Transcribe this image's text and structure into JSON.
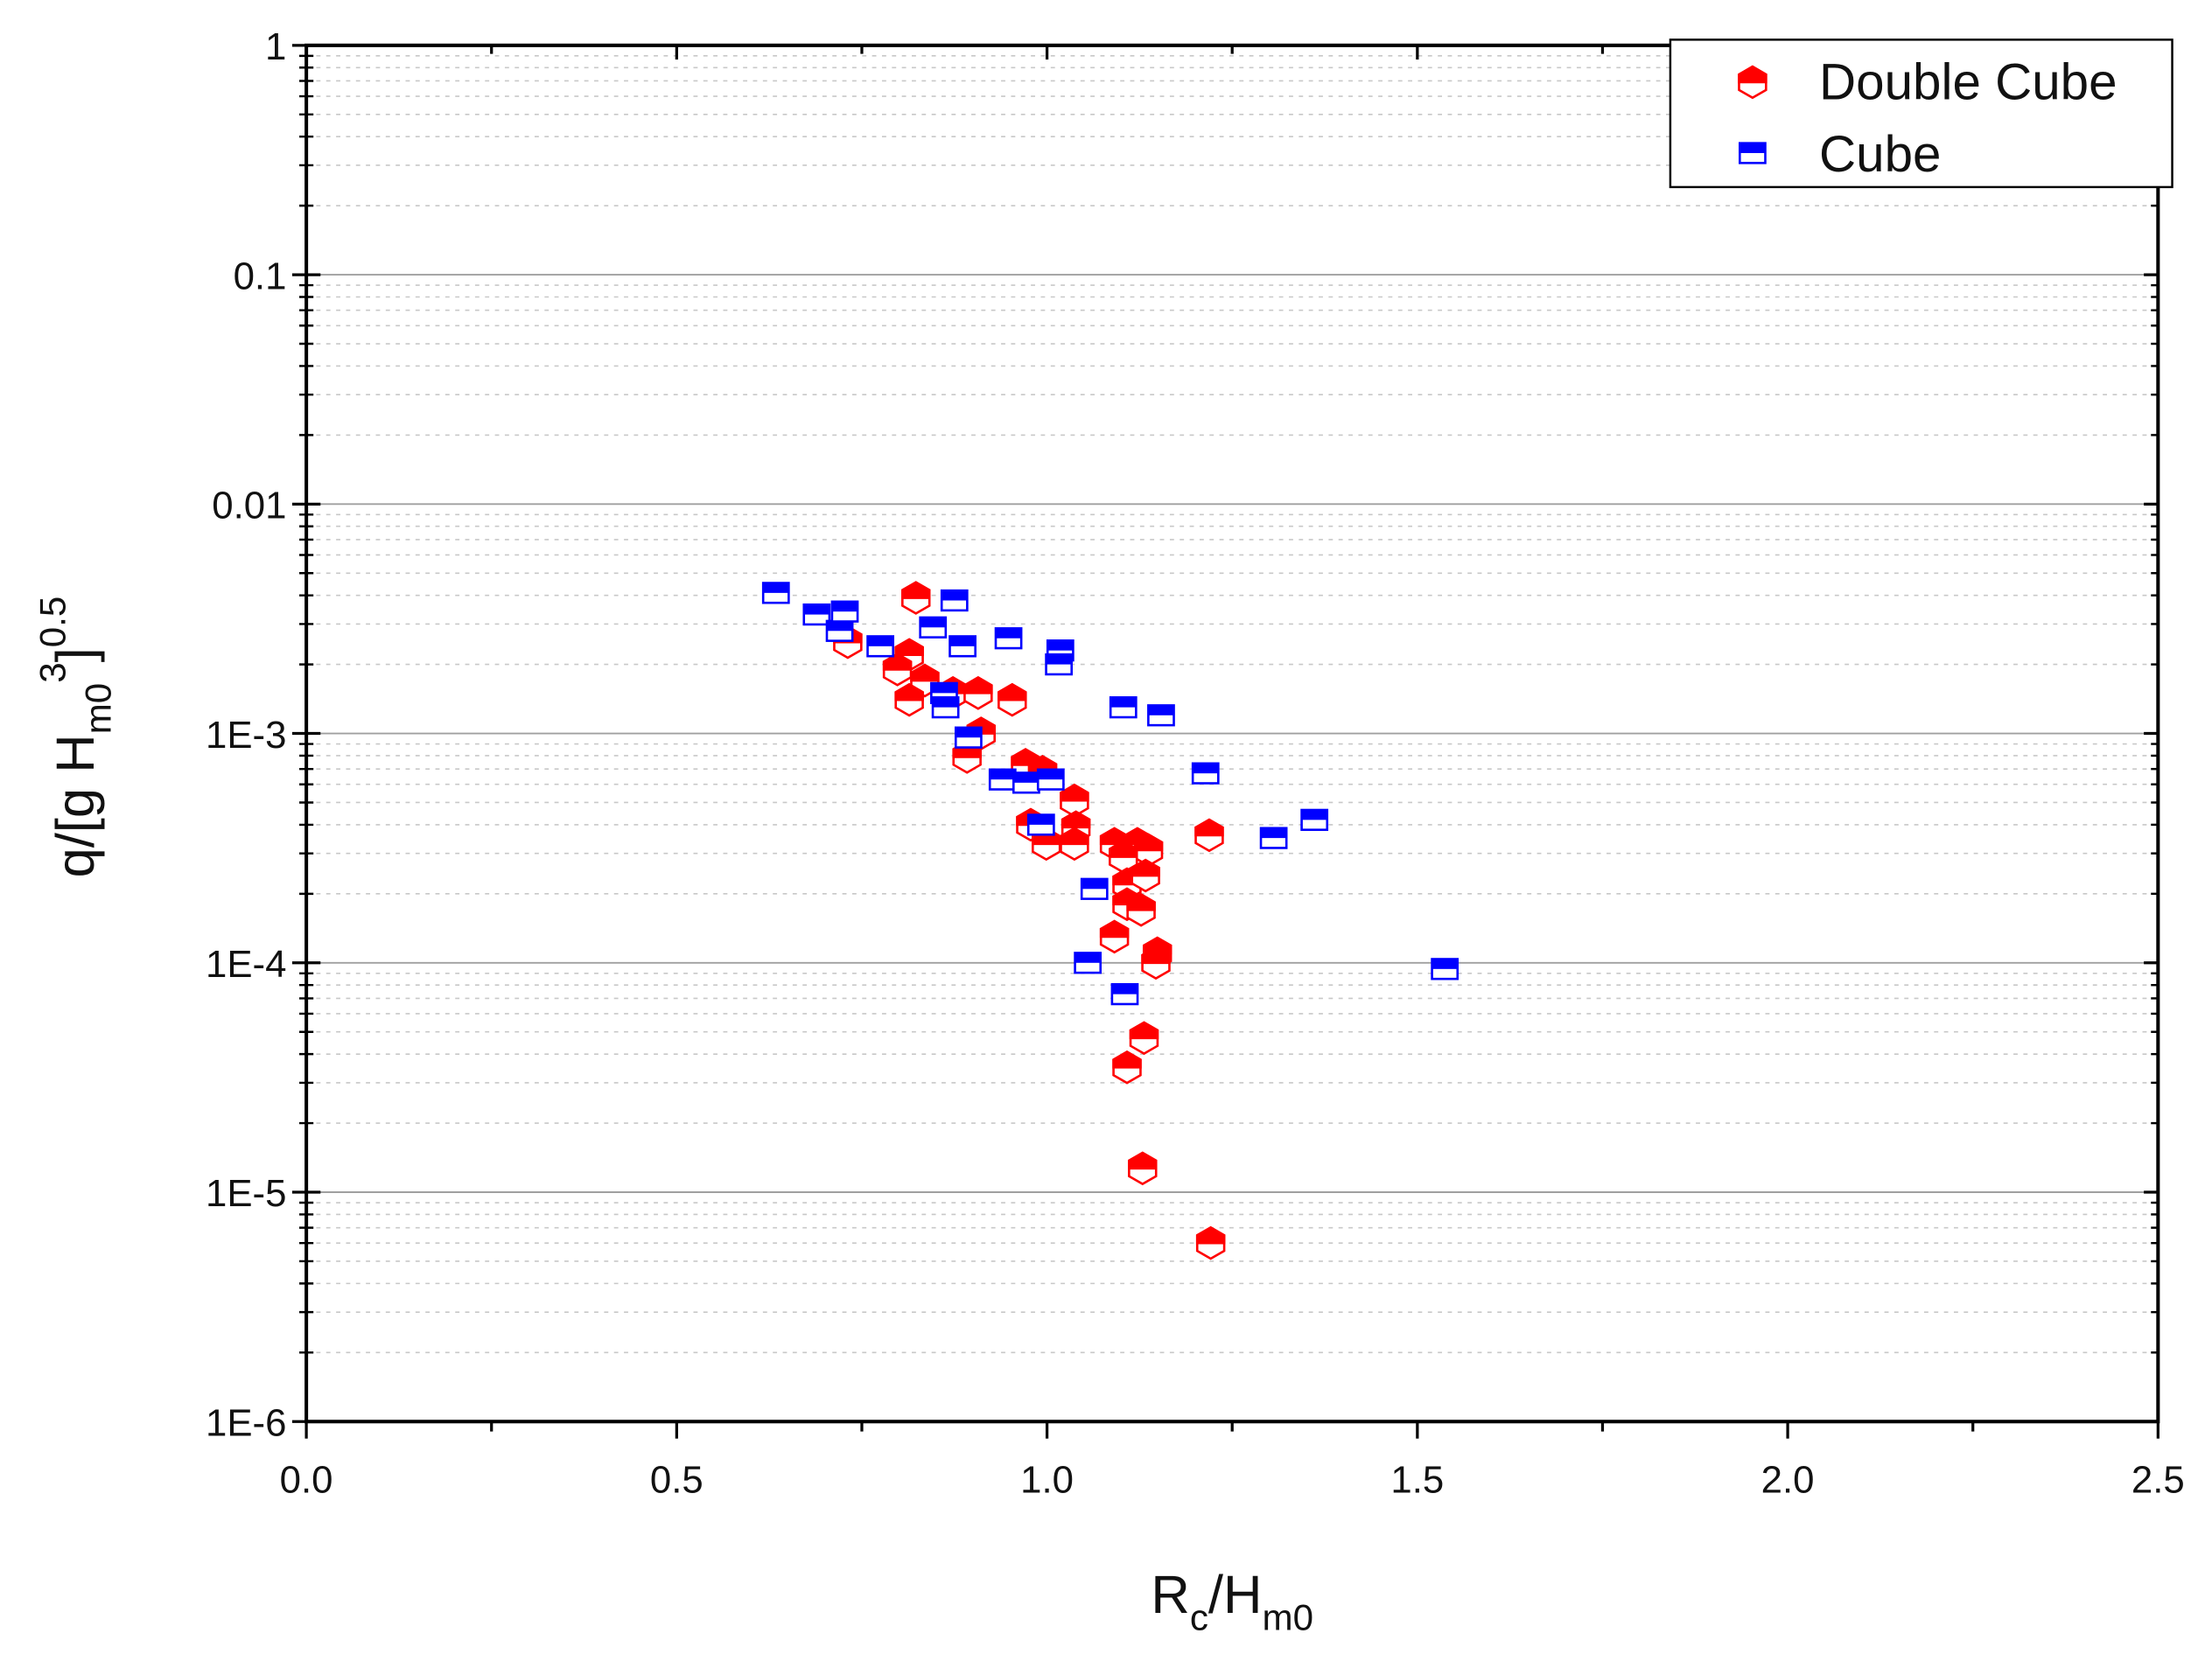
{
  "chart_data": {
    "type": "scatter",
    "title": "",
    "xlabel": {
      "main": "R",
      "sub1": "c",
      "mid": "/H",
      "sub2": "m0"
    },
    "ylabel": {
      "pre": "q/[g H",
      "sub": "m0",
      "sup1": "3",
      "close": "]",
      "sup2": "0.5"
    },
    "xlim": [
      0,
      2.5
    ],
    "ylim": [
      1e-06,
      1
    ],
    "yscale": "log",
    "grid": true,
    "x_ticks": [
      "0.0",
      "0.5",
      "1.0",
      "1.5",
      "2.0",
      "2.5"
    ],
    "x_tick_values": [
      0,
      0.5,
      1.0,
      1.5,
      2.0,
      2.5
    ],
    "y_ticks": [
      "1",
      "0.1",
      "0.01",
      "1E-3",
      "1E-4",
      "1E-5",
      "1E-6"
    ],
    "y_tick_values": [
      1,
      0.1,
      0.01,
      0.001,
      0.0001,
      1e-05,
      1e-06
    ],
    "legend_position": "top-right",
    "series": [
      {
        "name": "Double Cube",
        "color": "#ff0000",
        "marker": "half-filled-hexagon",
        "points": [
          [
            0.823,
            0.0039
          ],
          [
            0.731,
            0.0025
          ],
          [
            0.814,
            0.0022
          ],
          [
            0.798,
            0.0019
          ],
          [
            0.835,
            0.0017
          ],
          [
            0.814,
            0.0014
          ],
          [
            0.873,
            0.0015
          ],
          [
            0.907,
            0.0015
          ],
          [
            0.953,
            0.0014
          ],
          [
            0.911,
            0.001
          ],
          [
            0.892,
            0.00079
          ],
          [
            0.971,
            0.00073
          ],
          [
            0.994,
            0.00068
          ],
          [
            1.037,
            0.00051
          ],
          [
            0.978,
            0.0004
          ],
          [
            1.039,
            0.00039
          ],
          [
            0.999,
            0.00033
          ],
          [
            1.037,
            0.00033
          ],
          [
            1.091,
            0.00033
          ],
          [
            1.122,
            0.00033
          ],
          [
            1.137,
            0.00031
          ],
          [
            1.103,
            0.00029
          ],
          [
            1.219,
            0.00036
          ],
          [
            1.108,
            0.00022
          ],
          [
            1.133,
            0.00024
          ],
          [
            1.108,
            0.00018
          ],
          [
            1.127,
            0.00017
          ],
          [
            1.091,
            0.00013
          ],
          [
            1.149,
            0.00011
          ],
          [
            1.147,
            0.0001
          ],
          [
            1.131,
            4.7e-05
          ],
          [
            1.108,
            3.5e-05
          ],
          [
            1.129,
            1.27e-05
          ],
          [
            1.221,
            6e-06
          ]
        ]
      },
      {
        "name": "Cube",
        "color": "#0000ff",
        "marker": "half-filled-square",
        "points": [
          [
            0.634,
            0.0041
          ],
          [
            0.689,
            0.0033
          ],
          [
            0.72,
            0.0028
          ],
          [
            0.727,
            0.0034
          ],
          [
            0.775,
            0.0024
          ],
          [
            0.846,
            0.0029
          ],
          [
            0.875,
            0.0038
          ],
          [
            0.886,
            0.0024
          ],
          [
            0.948,
            0.0026
          ],
          [
            1.018,
            0.0023
          ],
          [
            1.016,
            0.002
          ],
          [
            0.861,
            0.0015
          ],
          [
            0.863,
            0.0013
          ],
          [
            0.894,
            0.00096
          ],
          [
            1.103,
            0.0013
          ],
          [
            1.154,
            0.0012
          ],
          [
            0.94,
            0.00063
          ],
          [
            0.972,
            0.00061
          ],
          [
            1.005,
            0.00063
          ],
          [
            1.214,
            0.00067
          ],
          [
            0.992,
            0.0004
          ],
          [
            1.361,
            0.00042
          ],
          [
            1.306,
            0.00035
          ],
          [
            1.064,
            0.00021
          ],
          [
            1.055,
            0.0001
          ],
          [
            1.105,
            7.3e-05
          ],
          [
            1.537,
            9.4e-05
          ]
        ]
      }
    ]
  }
}
